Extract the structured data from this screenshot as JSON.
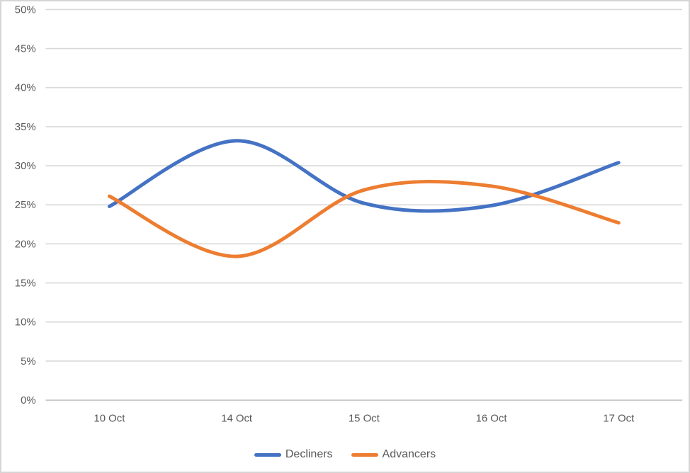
{
  "chart_data": {
    "type": "line",
    "smooth": true,
    "title": "",
    "xlabel": "",
    "ylabel": "",
    "categories": [
      "10 Oct",
      "14 Oct",
      "15 Oct",
      "16 Oct",
      "17 Oct"
    ],
    "series": [
      {
        "name": "Decliners",
        "color": "#4472C4",
        "values": [
          24.8,
          33.2,
          25.2,
          24.9,
          30.4
        ]
      },
      {
        "name": "Advancers",
        "color": "#ED7D31",
        "values": [
          26.1,
          18.4,
          26.9,
          27.4,
          22.7
        ]
      }
    ],
    "ylim": [
      0,
      50
    ],
    "ytick_step": 5,
    "ytick_labels": [
      "0%",
      "5%",
      "10%",
      "15%",
      "20%",
      "25%",
      "30%",
      "35%",
      "40%",
      "45%",
      "50%"
    ],
    "grid": true,
    "gridline_color": "#D9D9D9",
    "axis_line_color": "#BFBFBF",
    "axis_text_color": "#595959",
    "background": "#FFFFFF",
    "border_color": "#D6D6D6",
    "legend_position": "bottom-center",
    "line_width": 5
  }
}
